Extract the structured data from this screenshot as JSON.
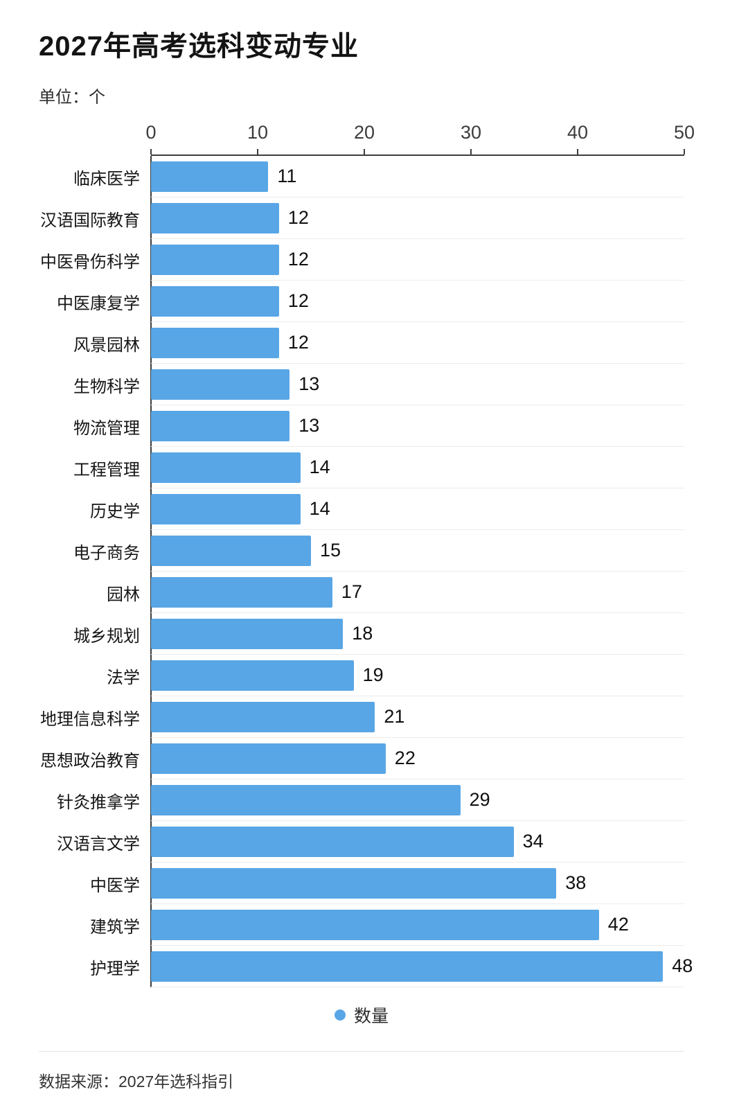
{
  "title": "2027年高考选科变动专业",
  "unit_label": "单位：个",
  "legend": {
    "label": "数量",
    "color": "#58a6e6"
  },
  "source": "数据来源：2027年选科指引",
  "chart_data": {
    "type": "bar",
    "orientation": "horizontal",
    "title": "2027年高考选科变动专业",
    "unit": "个",
    "series_name": "数量",
    "categories": [
      "临床医学",
      "汉语国际教育",
      "中医骨伤科学",
      "中医康复学",
      "风景园林",
      "生物科学",
      "物流管理",
      "工程管理",
      "历史学",
      "电子商务",
      "园林",
      "城乡规划",
      "法学",
      "地理信息科学",
      "思想政治教育",
      "针灸推拿学",
      "汉语言文学",
      "中医学",
      "建筑学",
      "护理学"
    ],
    "values": [
      11,
      12,
      12,
      12,
      12,
      13,
      13,
      14,
      14,
      15,
      17,
      18,
      19,
      21,
      22,
      29,
      34,
      38,
      42,
      48
    ],
    "xlim": [
      0,
      50
    ],
    "xticks": [
      0,
      10,
      20,
      30,
      40,
      50
    ],
    "bar_color": "#58a6e6",
    "legend_position": "bottom",
    "grid": false,
    "value_labels": true
  }
}
